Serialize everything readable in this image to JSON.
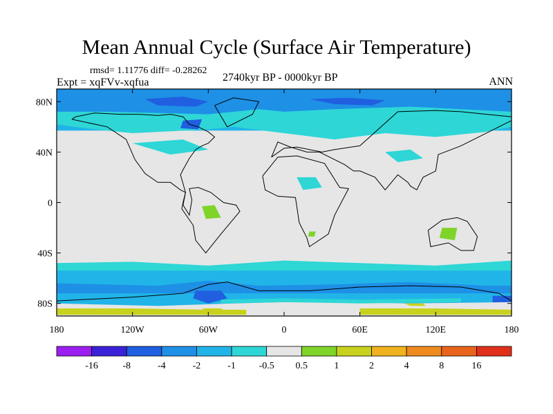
{
  "chart_data": {
    "type": "heatmap",
    "title": "Mean Annual Cycle (Surface Air Temperature)",
    "stats_text": "rmsd= 1.11776 diff= -0.28262",
    "experiment_text": "Expt = xqFVv-xqfua",
    "period_text": "2740kyr BP - 0000kyr BP",
    "season_text": "ANN",
    "xlim": [
      -180,
      180
    ],
    "ylim": [
      -90,
      90
    ],
    "x_ticks": [
      {
        "value": -180,
        "label": "180"
      },
      {
        "value": -120,
        "label": "120W"
      },
      {
        "value": -60,
        "label": "60W"
      },
      {
        "value": 0,
        "label": "0"
      },
      {
        "value": 60,
        "label": "60E"
      },
      {
        "value": 120,
        "label": "120E"
      },
      {
        "value": 180,
        "label": "180"
      }
    ],
    "y_ticks": [
      {
        "value": 80,
        "label": "80N"
      },
      {
        "value": 40,
        "label": "40N"
      },
      {
        "value": 0,
        "label": "0"
      },
      {
        "value": -40,
        "label": "40S"
      },
      {
        "value": -80,
        "label": "80S"
      }
    ],
    "colorbar": {
      "labels": [
        "-16",
        "-8",
        "-4",
        "-2",
        "-1",
        "-0.5",
        "0.5",
        "1",
        "2",
        "4",
        "8",
        "16"
      ],
      "colors": [
        "#9b1ff0",
        "#3b22d8",
        "#1f5fe0",
        "#1e90e6",
        "#21b4e8",
        "#2ed6d6",
        "#e6e6e6",
        "#7fd42a",
        "#c8d21c",
        "#f0b21e",
        "#ee8a1e",
        "#e8641c",
        "#e0301c"
      ]
    },
    "regions": [
      {
        "category": "-2 to -1",
        "lons": [
          -180,
          180,
          180,
          -180
        ],
        "lats": [
          90,
          90,
          57,
          57
        ]
      },
      {
        "category": "-1 to -0.5",
        "lons": [
          -180,
          -150,
          -120,
          -60,
          -40,
          0,
          40,
          80,
          120,
          160,
          180,
          180,
          -180
        ],
        "lats": [
          62,
          58,
          55,
          58,
          60,
          55,
          50,
          55,
          52,
          56,
          60,
          90,
          90
        ]
      },
      {
        "category": "-4 to -2",
        "lons": [
          -140,
          -60,
          -20,
          0,
          40,
          100,
          140,
          180,
          180,
          -180,
          -180
        ],
        "lats": [
          72,
          70,
          74,
          72,
          74,
          76,
          74,
          72,
          90,
          90,
          72
        ]
      },
      {
        "category": "-8 to -4",
        "lons": [
          -110,
          -80,
          -60,
          -70,
          -100
        ],
        "lats": [
          82,
          84,
          80,
          76,
          77
        ]
      },
      {
        "category": "-8 to -4",
        "lons": [
          20,
          50,
          80,
          70,
          40
        ],
        "lats": [
          82,
          83,
          81,
          77,
          78
        ]
      },
      {
        "category": "-8 to -4",
        "lons": [
          -80,
          -65,
          -68,
          -82
        ],
        "lats": [
          65,
          66,
          58,
          59
        ]
      },
      {
        "category": "-2 to -1",
        "lons": [
          -180,
          180,
          180,
          -180
        ],
        "lats": [
          -90,
          -90,
          -52,
          -52
        ]
      },
      {
        "category": "-1 to -0.5",
        "lons": [
          -180,
          -120,
          -60,
          0,
          60,
          120,
          180,
          180,
          -180
        ],
        "lats": [
          -48,
          -47,
          -50,
          -46,
          -48,
          -50,
          -46,
          -54,
          -54
        ]
      },
      {
        "category": "-4 to -2",
        "lons": [
          -180,
          -100,
          -60,
          -20,
          40,
          100,
          160,
          180,
          180,
          -180
        ],
        "lats": [
          -64,
          -66,
          -62,
          -66,
          -65,
          -63,
          -66,
          -66,
          -72,
          -72
        ]
      },
      {
        "category": "-8 to -4",
        "lons": [
          -70,
          -50,
          -45,
          -60,
          -72
        ],
        "lats": [
          -70,
          -70,
          -76,
          -80,
          -76
        ]
      },
      {
        "category": "-8 to -4",
        "lons": [
          165,
          180,
          180,
          165
        ],
        "lats": [
          -74,
          -74,
          -80,
          -80
        ]
      },
      {
        "category": "-0.5 to 0.5",
        "lons": [
          -180,
          -100,
          -40,
          0,
          40,
          100,
          180,
          180,
          -180
        ],
        "lats": [
          -80,
          -82,
          -80,
          -79,
          -79,
          -80,
          -79,
          -90,
          -90
        ]
      },
      {
        "category": "-1 to -0.5",
        "lons": [
          -50,
          0,
          60,
          140,
          140,
          60,
          0,
          -50
        ],
        "lats": [
          -77,
          -76,
          -77,
          -76,
          -79,
          -80,
          -79,
          -80
        ]
      },
      {
        "category": "1 to 2",
        "lons": [
          -180,
          -120,
          -60,
          -30,
          -30,
          -120,
          -180
        ],
        "lats": [
          -84,
          -84,
          -85,
          -85,
          -89,
          -89,
          -89
        ]
      },
      {
        "category": "1 to 2",
        "lons": [
          60,
          120,
          180,
          180,
          60
        ],
        "lats": [
          -84,
          -84,
          -85,
          -89,
          -89
        ]
      },
      {
        "category": "1 to 2",
        "lons": [
          95,
          110,
          112,
          100
        ],
        "lats": [
          -80,
          -80,
          -82,
          -82
        ]
      },
      {
        "category": "-1 to -0.5",
        "lons": [
          -120,
          -80,
          -60,
          -90
        ],
        "lats": [
          47,
          50,
          42,
          38
        ]
      },
      {
        "category": "-1 to -0.5",
        "lons": [
          10,
          25,
          30,
          15
        ],
        "lats": [
          20,
          20,
          12,
          10
        ]
      },
      {
        "category": "-1 to -0.5",
        "lons": [
          80,
          100,
          110,
          90
        ],
        "lats": [
          40,
          42,
          35,
          32
        ]
      },
      {
        "category": "0.5 to 1",
        "lons": [
          -65,
          -55,
          -50,
          -62
        ],
        "lats": [
          -3,
          -2,
          -12,
          -13
        ]
      },
      {
        "category": "0.5 to 1",
        "lons": [
          125,
          137,
          135,
          123
        ],
        "lats": [
          -20,
          -20,
          -30,
          -28
        ]
      },
      {
        "category": "0.5 to 1",
        "lons": [
          20,
          25,
          24,
          19
        ],
        "lats": [
          -23,
          -23,
          -27,
          -27
        ]
      },
      {
        "category": "1 to 2",
        "lons": [
          -65,
          -50,
          -45,
          -60
        ],
        "lats": [
          -84,
          -84,
          -87,
          -87
        ]
      }
    ],
    "coastline": [
      {
        "lons": [
          -168,
          -140,
          -125,
          -118,
          -110,
          -100,
          -90,
          -82,
          -78,
          -82,
          -80,
          -75,
          -70,
          -65,
          -60,
          -55,
          -60,
          -68,
          -75,
          -80,
          -90,
          -100,
          -115,
          -130,
          -150,
          -165,
          -168
        ],
        "lats": [
          66,
          60,
          50,
          34,
          23,
          16,
          16,
          10,
          8,
          22,
          26,
          35,
          42,
          45,
          47,
          52,
          56,
          60,
          62,
          68,
          70,
          69,
          70,
          70,
          71,
          68,
          66
        ]
      },
      {
        "lons": [
          -78,
          -80,
          -81,
          -72,
          -70,
          -62,
          -50,
          -35,
          -38,
          -48,
          -58,
          -68,
          -75,
          -73,
          -75,
          -80,
          -78
        ],
        "lats": [
          8,
          0,
          -5,
          -18,
          -30,
          -40,
          -25,
          -7,
          -2,
          0,
          8,
          12,
          11,
          2,
          -10,
          -2,
          8
        ]
      },
      {
        "lons": [
          -17,
          -5,
          10,
          32,
          44,
          51,
          40,
          35,
          20,
          18,
          12,
          9,
          -5,
          -15,
          -17
        ],
        "lats": [
          21,
          36,
          37,
          31,
          12,
          11,
          -10,
          -25,
          -35,
          -28,
          -16,
          4,
          5,
          10,
          21
        ]
      },
      {
        "lons": [
          -10,
          0,
          10,
          30,
          40,
          60,
          90,
          120,
          140,
          160,
          180,
          180,
          140,
          122,
          120,
          110,
          105,
          100,
          98,
          90,
          80,
          72,
          60,
          55,
          48,
          36,
          28,
          18,
          5,
          -5,
          -10
        ],
        "lats": [
          36,
          43,
          44,
          40,
          42,
          45,
          72,
          73,
          72,
          70,
          68,
          65,
          45,
          38,
          25,
          20,
          10,
          13,
          16,
          22,
          10,
          20,
          25,
          25,
          30,
          36,
          40,
          40,
          44,
          48,
          36
        ]
      },
      {
        "lons": [
          114,
          125,
          137,
          145,
          153,
          150,
          140,
          130,
          116,
          114
        ],
        "lats": [
          -22,
          -14,
          -12,
          -15,
          -27,
          -38,
          -38,
          -32,
          -35,
          -22
        ]
      },
      {
        "lons": [
          -55,
          -40,
          -20,
          -25,
          -45,
          -55
        ],
        "lats": [
          77,
          83,
          80,
          70,
          60,
          77
        ]
      },
      {
        "lons": [
          -180,
          -120,
          -80,
          -60,
          -45,
          -20,
          20,
          60,
          100,
          140,
          170,
          180
        ],
        "lats": [
          -78,
          -75,
          -72,
          -65,
          -63,
          -70,
          -70,
          -67,
          -66,
          -67,
          -72,
          -78
        ]
      }
    ]
  }
}
